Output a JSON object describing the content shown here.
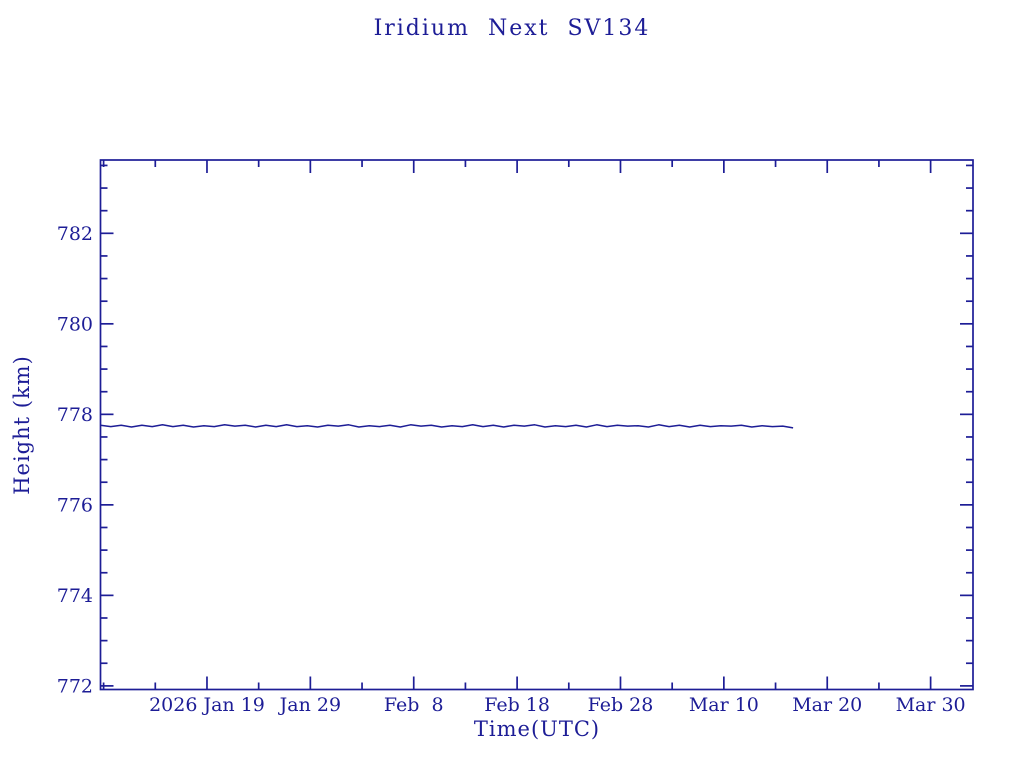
{
  "window": {
    "background": "#ffffff"
  },
  "colors": {
    "ink": "#1d1d96"
  },
  "chart_data": {
    "type": "line",
    "title": "Iridium Next SV134",
    "xlabel": "Time(UTC)",
    "ylabel": "Height (km)",
    "grid": false,
    "legend": null,
    "x_unit": "day of year 2026",
    "xlim": [
      8.7,
      93.1
    ],
    "ylim": [
      771.92,
      783.62
    ],
    "x_major_ticks": [
      {
        "day": 19,
        "label": "2026 Jan 19"
      },
      {
        "day": 29,
        "label": "Jan 29"
      },
      {
        "day": 39,
        "label": "Feb  8"
      },
      {
        "day": 49,
        "label": "Feb 18"
      },
      {
        "day": 59,
        "label": "Feb 28"
      },
      {
        "day": 69,
        "label": "Mar 10"
      },
      {
        "day": 79,
        "label": "Mar 20"
      },
      {
        "day": 89,
        "label": "Mar 30"
      }
    ],
    "x_minor_days": [
      9,
      14,
      24,
      34,
      44,
      54,
      64,
      74,
      84
    ],
    "y_major_ticks": [
      772,
      774,
      776,
      778,
      780,
      782
    ],
    "y_minor_ticks": [
      772.5,
      773,
      773.5,
      774.5,
      775,
      775.5,
      776.5,
      777,
      777.5,
      778.5,
      779,
      779.5,
      780.5,
      781,
      781.5,
      782.5,
      783,
      783.5
    ],
    "series": [
      {
        "name": "SV134 height",
        "points": [
          [
            8.7,
            777.76
          ],
          [
            9.7,
            777.73
          ],
          [
            10.7,
            777.76
          ],
          [
            11.7,
            777.72
          ],
          [
            12.7,
            777.76
          ],
          [
            13.7,
            777.73
          ],
          [
            14.7,
            777.77
          ],
          [
            15.7,
            777.73
          ],
          [
            16.7,
            777.76
          ],
          [
            17.7,
            777.72
          ],
          [
            18.7,
            777.75
          ],
          [
            19.7,
            777.73
          ],
          [
            20.7,
            777.77
          ],
          [
            21.7,
            777.74
          ],
          [
            22.7,
            777.76
          ],
          [
            23.7,
            777.72
          ],
          [
            24.7,
            777.76
          ],
          [
            25.7,
            777.73
          ],
          [
            26.7,
            777.77
          ],
          [
            27.7,
            777.73
          ],
          [
            28.7,
            777.75
          ],
          [
            29.7,
            777.72
          ],
          [
            30.7,
            777.76
          ],
          [
            31.7,
            777.74
          ],
          [
            32.7,
            777.77
          ],
          [
            33.7,
            777.72
          ],
          [
            34.7,
            777.75
          ],
          [
            35.7,
            777.73
          ],
          [
            36.7,
            777.76
          ],
          [
            37.7,
            777.72
          ],
          [
            38.7,
            777.77
          ],
          [
            39.7,
            777.74
          ],
          [
            40.7,
            777.76
          ],
          [
            41.7,
            777.72
          ],
          [
            42.7,
            777.75
          ],
          [
            43.7,
            777.73
          ],
          [
            44.7,
            777.77
          ],
          [
            45.7,
            777.73
          ],
          [
            46.7,
            777.76
          ],
          [
            47.7,
            777.72
          ],
          [
            48.7,
            777.76
          ],
          [
            49.7,
            777.74
          ],
          [
            50.7,
            777.77
          ],
          [
            51.7,
            777.72
          ],
          [
            52.7,
            777.75
          ],
          [
            53.7,
            777.73
          ],
          [
            54.7,
            777.76
          ],
          [
            55.7,
            777.72
          ],
          [
            56.7,
            777.77
          ],
          [
            57.7,
            777.73
          ],
          [
            58.7,
            777.76
          ],
          [
            59.7,
            777.74
          ],
          [
            60.7,
            777.75
          ],
          [
            61.7,
            777.72
          ],
          [
            62.7,
            777.77
          ],
          [
            63.7,
            777.73
          ],
          [
            64.7,
            777.76
          ],
          [
            65.7,
            777.72
          ],
          [
            66.7,
            777.76
          ],
          [
            67.7,
            777.73
          ],
          [
            68.7,
            777.75
          ],
          [
            69.7,
            777.74
          ],
          [
            70.7,
            777.76
          ],
          [
            71.7,
            777.72
          ],
          [
            72.7,
            777.75
          ],
          [
            73.7,
            777.73
          ],
          [
            74.7,
            777.74
          ],
          [
            75.7,
            777.7
          ]
        ]
      }
    ]
  }
}
